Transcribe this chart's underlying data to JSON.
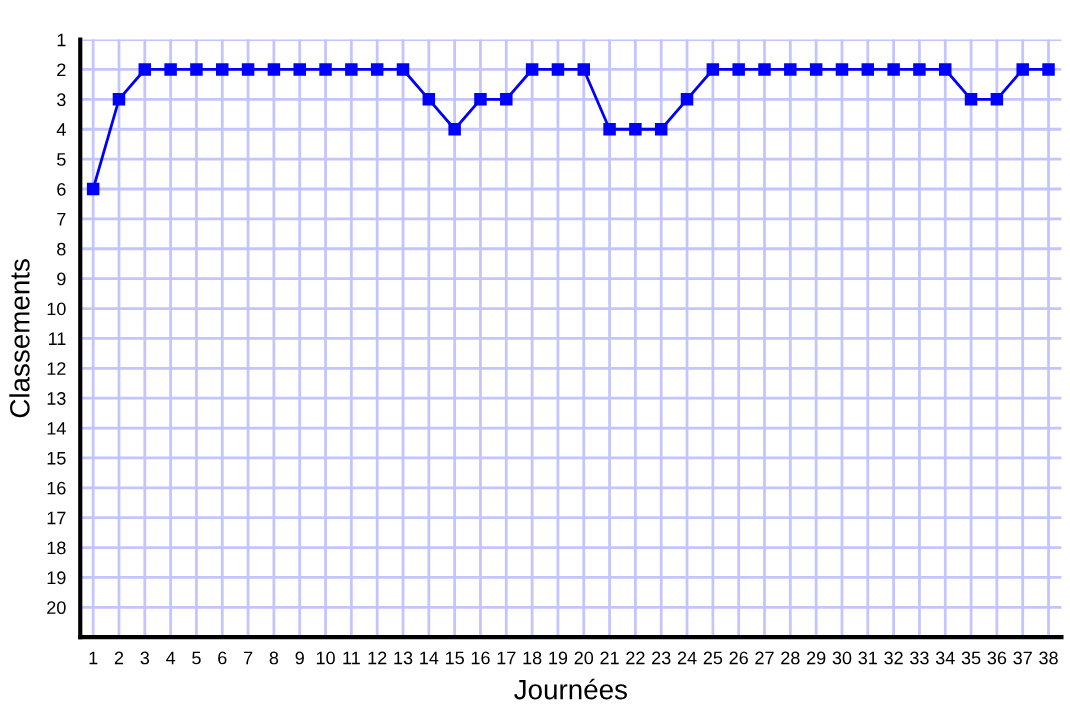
{
  "chart_data": {
    "type": "line",
    "xlabel": "Journées",
    "ylabel": "Classements",
    "x": [
      1,
      2,
      3,
      4,
      5,
      6,
      7,
      8,
      9,
      10,
      11,
      12,
      13,
      14,
      15,
      16,
      17,
      18,
      19,
      20,
      21,
      22,
      23,
      24,
      25,
      26,
      27,
      28,
      29,
      30,
      31,
      32,
      33,
      34,
      35,
      36,
      37,
      38
    ],
    "series": [
      {
        "color": "#0000ff",
        "values": [
          6,
          3,
          2,
          2,
          2,
          2,
          2,
          2,
          2,
          2,
          2,
          2,
          2,
          3,
          4,
          3,
          3,
          2,
          2,
          2,
          4,
          4,
          4,
          3,
          2,
          2,
          2,
          2,
          2,
          2,
          2,
          2,
          2,
          2,
          3,
          3,
          2,
          2
        ]
      }
    ],
    "xlim": [
      0.5,
      38.5
    ],
    "ylim": [
      21,
      1
    ],
    "xticks": [
      1,
      2,
      3,
      4,
      5,
      6,
      7,
      8,
      9,
      10,
      11,
      12,
      13,
      14,
      15,
      16,
      17,
      18,
      19,
      20,
      21,
      22,
      23,
      24,
      25,
      26,
      27,
      28,
      29,
      30,
      31,
      32,
      33,
      34,
      35,
      36,
      37,
      38
    ],
    "yticks": [
      1,
      2,
      3,
      4,
      5,
      6,
      7,
      8,
      9,
      10,
      11,
      12,
      13,
      14,
      15,
      16,
      17,
      18,
      19,
      20
    ],
    "grid": true,
    "marker": "square",
    "line_style": "solid",
    "legend": false
  }
}
